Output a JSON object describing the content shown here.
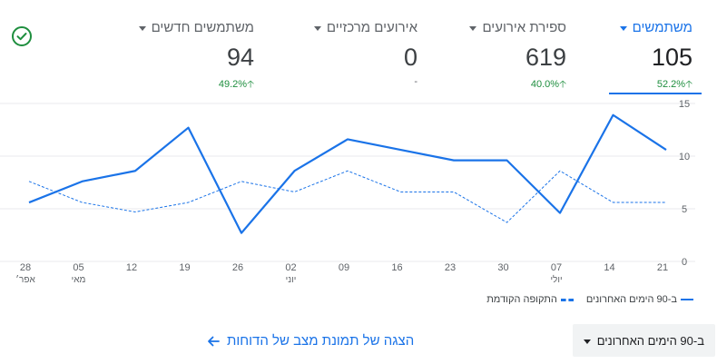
{
  "metrics": [
    {
      "label": "משתמשים",
      "value": "105",
      "delta": "52.2%",
      "direction": "up"
    },
    {
      "label": "ספירת אירועים",
      "value": "619",
      "delta": "40.0%",
      "direction": "up"
    },
    {
      "label": "אירועים מרכזיים",
      "value": "0",
      "delta": "-",
      "direction": "none"
    },
    {
      "label": "משתמשים חדשים",
      "value": "94",
      "delta": "49.2%",
      "direction": "up"
    }
  ],
  "legend": {
    "current": "ב-90 הימים האחרונים",
    "previous": "התקופה הקודמת"
  },
  "range_select": {
    "value": "ב-90 הימים האחרונים"
  },
  "report_link": {
    "label": "הצגה של תמונת מצב של הדוחות"
  },
  "colors": {
    "accent": "#1a73e8",
    "positive": "#1e8e3e",
    "grid": "#e8eaed"
  },
  "icons": {
    "status": "check-circle-icon",
    "link_arrow": "arrow-left-icon"
  },
  "chart_data": {
    "type": "line",
    "x": [
      "28",
      "05",
      "12",
      "19",
      "26",
      "02",
      "09",
      "16",
      "23",
      "30",
      "07",
      "14",
      "21"
    ],
    "x_sublabels": [
      "אפר׳",
      "מאי",
      "",
      "",
      "",
      "יוני",
      "",
      "",
      "",
      "",
      "יולי",
      "",
      ""
    ],
    "y_ticks": [
      0,
      5,
      10,
      15
    ],
    "ylim": [
      0,
      15
    ],
    "series": [
      {
        "name": "ב-90 הימים האחרונים",
        "style": "solid",
        "values": [
          5.6,
          7.6,
          8.6,
          12.7,
          2.7,
          8.6,
          11.6,
          10.6,
          9.6,
          9.6,
          4.6,
          13.9,
          10.6
        ]
      },
      {
        "name": "התקופה הקודמת",
        "style": "dashed",
        "values": [
          7.6,
          5.6,
          4.7,
          5.6,
          7.6,
          6.6,
          8.6,
          6.6,
          6.6,
          3.7,
          8.6,
          5.6,
          5.6
        ]
      }
    ]
  }
}
